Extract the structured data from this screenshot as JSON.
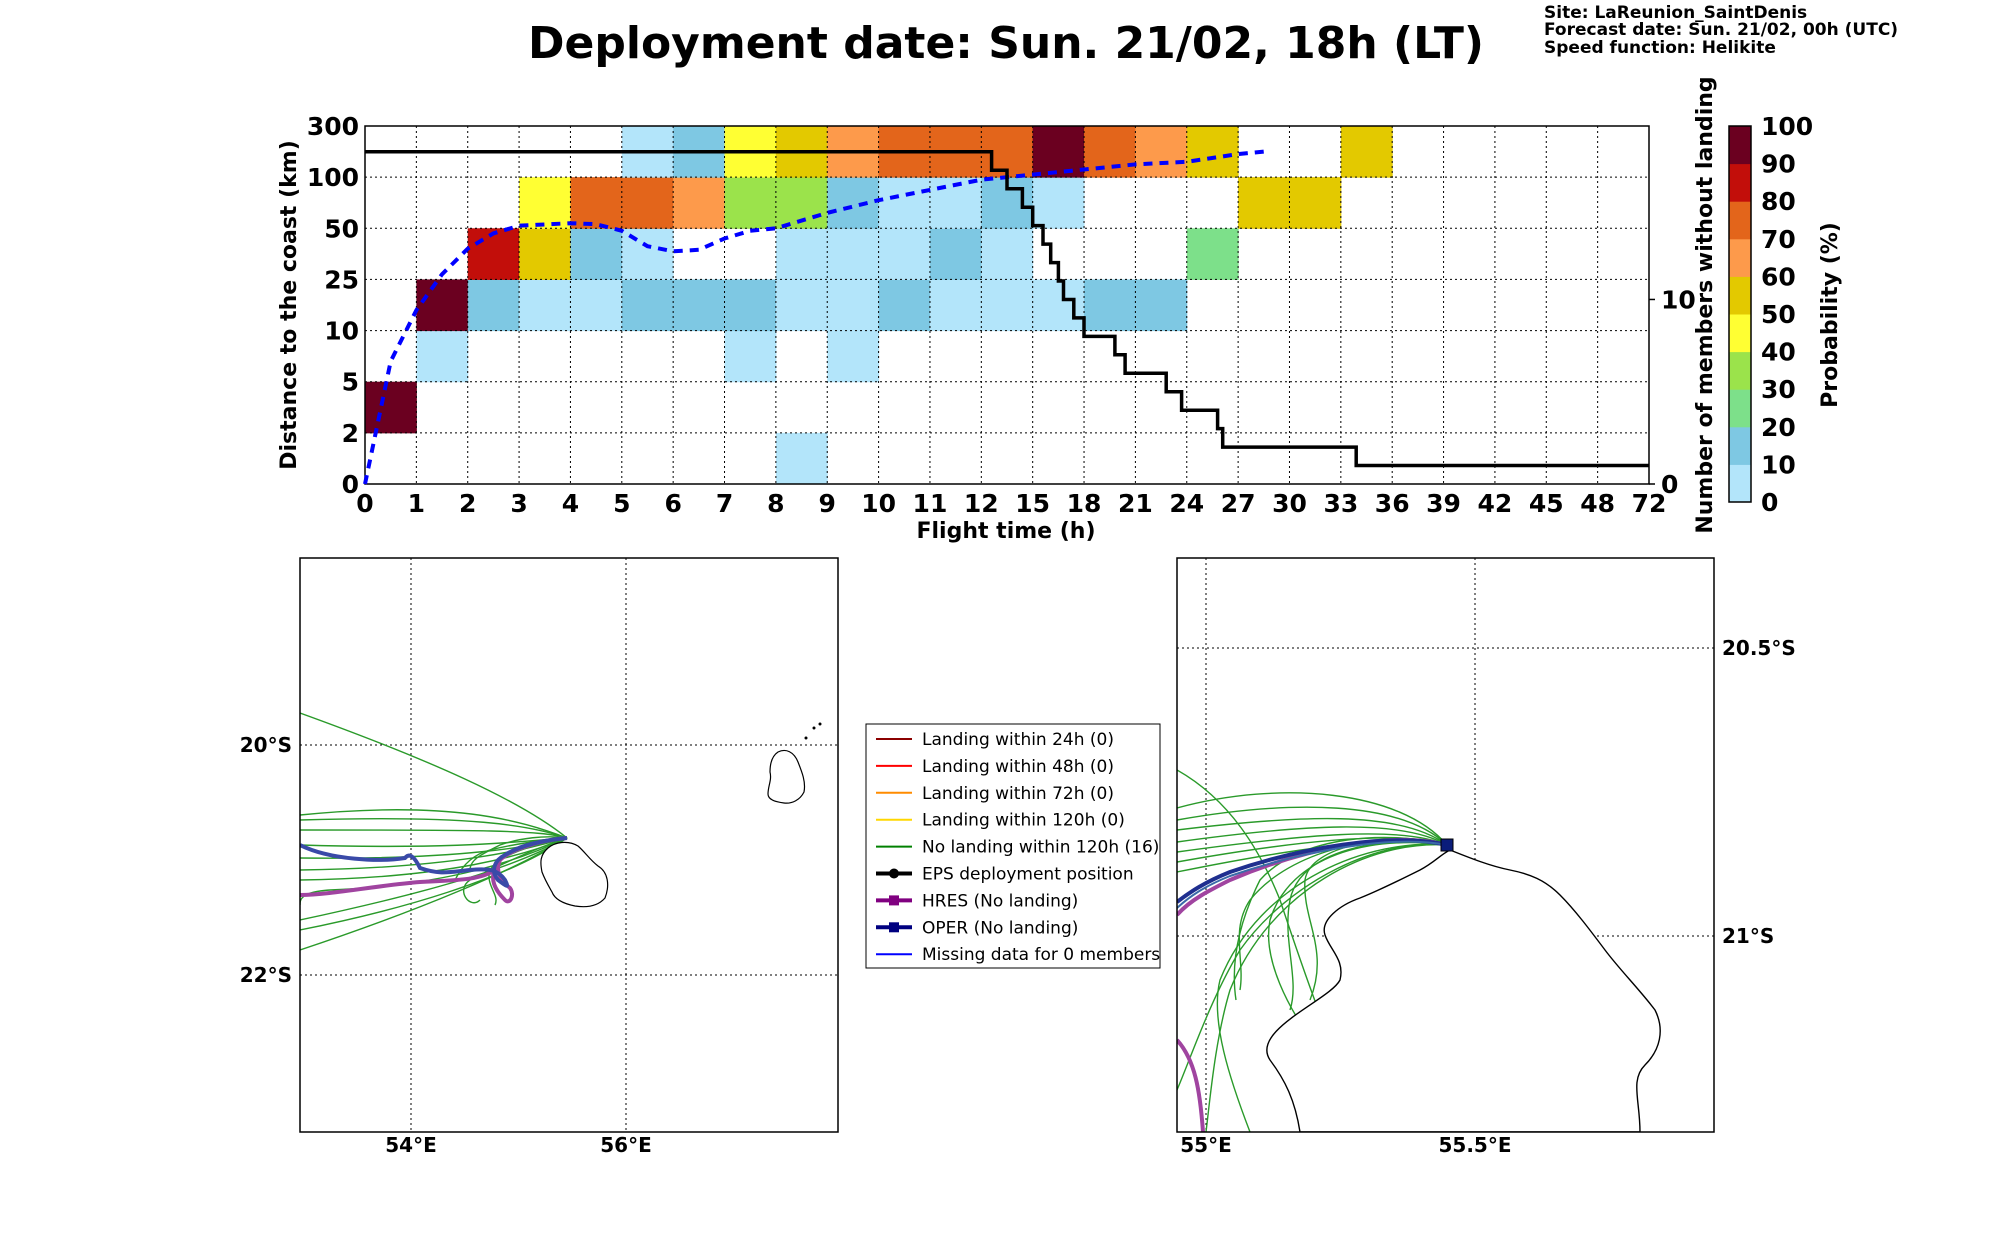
{
  "header": {
    "title": "Deployment date: Sun. 21/02, 18h (LT)",
    "site": "Site: LaReunion_SaintDenis",
    "forecast": "Forecast date: Sun. 21/02, 00h (UTC)",
    "speed": "Speed function: Helikite"
  },
  "chart_data": [
    {
      "type": "heatmap",
      "title": "Deployment date: Sun. 21/02, 18h (LT)",
      "xlabel": "Flight time (h)",
      "ylabel": "Distance to the coast (km)",
      "y2label": "Number of members without landing",
      "colorbar_label": "Probability (%)",
      "x_ticks": [
        "0",
        "1",
        "2",
        "3",
        "4",
        "5",
        "6",
        "7",
        "8",
        "9",
        "10",
        "11",
        "12",
        "15",
        "18",
        "21",
        "24",
        "27",
        "30",
        "33",
        "36",
        "39",
        "42",
        "45",
        "48",
        "72"
      ],
      "y_ticks": [
        "0",
        "2",
        "5",
        "10",
        "25",
        "50",
        "100",
        "300"
      ],
      "y2_ticks": [
        "0",
        "10"
      ],
      "y2_range": [
        0,
        19.4
      ],
      "colorbar": {
        "ticks": [
          "0",
          "10",
          "20",
          "30",
          "40",
          "50",
          "60",
          "70",
          "80",
          "90",
          "100"
        ],
        "colors": [
          "#b3e5fa",
          "#7ec8e3",
          "#7de08a",
          "#9be34b",
          "#ffff33",
          "#e3c900",
          "#fd9a4b",
          "#e3651b",
          "#c20e0a",
          "#6b0020"
        ]
      },
      "cells": [
        {
          "x_bin": 0,
          "y_bin": 1,
          "prob": 95
        },
        {
          "x_bin": 1,
          "y_bin": 2,
          "prob": 5
        },
        {
          "x_bin": 1,
          "y_bin": 3,
          "prob": 95
        },
        {
          "x_bin": 2,
          "y_bin": 3,
          "prob": 15
        },
        {
          "x_bin": 2,
          "y_bin": 4,
          "prob": 85
        },
        {
          "x_bin": 3,
          "y_bin": 3,
          "prob": 5
        },
        {
          "x_bin": 3,
          "y_bin": 4,
          "prob": 55
        },
        {
          "x_bin": 3,
          "y_bin": 5,
          "prob": 45
        },
        {
          "x_bin": 4,
          "y_bin": 3,
          "prob": 5
        },
        {
          "x_bin": 4,
          "y_bin": 4,
          "prob": 15
        },
        {
          "x_bin": 4,
          "y_bin": 5,
          "prob": 75
        },
        {
          "x_bin": 5,
          "y_bin": 3,
          "prob": 15
        },
        {
          "x_bin": 5,
          "y_bin": 4,
          "prob": 5
        },
        {
          "x_bin": 5,
          "y_bin": 5,
          "prob": 75
        },
        {
          "x_bin": 5,
          "y_bin": 6,
          "prob": 5
        },
        {
          "x_bin": 6,
          "y_bin": 3,
          "prob": 15
        },
        {
          "x_bin": 6,
          "y_bin": 5,
          "prob": 65
        },
        {
          "x_bin": 6,
          "y_bin": 6,
          "prob": 15
        },
        {
          "x_bin": 7,
          "y_bin": 2,
          "prob": 5
        },
        {
          "x_bin": 7,
          "y_bin": 3,
          "prob": 15
        },
        {
          "x_bin": 7,
          "y_bin": 5,
          "prob": 35
        },
        {
          "x_bin": 7,
          "y_bin": 6,
          "prob": 45
        },
        {
          "x_bin": 8,
          "y_bin": 0,
          "prob": 5
        },
        {
          "x_bin": 8,
          "y_bin": 3,
          "prob": 5
        },
        {
          "x_bin": 8,
          "y_bin": 4,
          "prob": 5
        },
        {
          "x_bin": 8,
          "y_bin": 5,
          "prob": 35
        },
        {
          "x_bin": 8,
          "y_bin": 6,
          "prob": 55
        },
        {
          "x_bin": 9,
          "y_bin": 2,
          "prob": 5
        },
        {
          "x_bin": 9,
          "y_bin": 3,
          "prob": 5
        },
        {
          "x_bin": 9,
          "y_bin": 4,
          "prob": 5
        },
        {
          "x_bin": 9,
          "y_bin": 5,
          "prob": 15
        },
        {
          "x_bin": 9,
          "y_bin": 6,
          "prob": 65
        },
        {
          "x_bin": 10,
          "y_bin": 3,
          "prob": 15
        },
        {
          "x_bin": 10,
          "y_bin": 4,
          "prob": 5
        },
        {
          "x_bin": 10,
          "y_bin": 5,
          "prob": 5
        },
        {
          "x_bin": 10,
          "y_bin": 6,
          "prob": 75
        },
        {
          "x_bin": 11,
          "y_bin": 3,
          "prob": 5
        },
        {
          "x_bin": 11,
          "y_bin": 4,
          "prob": 15
        },
        {
          "x_bin": 11,
          "y_bin": 5,
          "prob": 5
        },
        {
          "x_bin": 11,
          "y_bin": 6,
          "prob": 75
        },
        {
          "x_bin": 12,
          "y_bin": 3,
          "prob": 5
        },
        {
          "x_bin": 12,
          "y_bin": 4,
          "prob": 5
        },
        {
          "x_bin": 12,
          "y_bin": 5,
          "prob": 15
        },
        {
          "x_bin": 12,
          "y_bin": 6,
          "prob": 75
        },
        {
          "x_bin": 13,
          "y_bin": 3,
          "prob": 5
        },
        {
          "x_bin": 13,
          "y_bin": 5,
          "prob": 5
        },
        {
          "x_bin": 13,
          "y_bin": 6,
          "prob": 95
        },
        {
          "x_bin": 14,
          "y_bin": 3,
          "prob": 15
        },
        {
          "x_bin": 14,
          "y_bin": 6,
          "prob": 75
        },
        {
          "x_bin": 15,
          "y_bin": 3,
          "prob": 15
        },
        {
          "x_bin": 15,
          "y_bin": 6,
          "prob": 65
        },
        {
          "x_bin": 16,
          "y_bin": 4,
          "prob": 25
        },
        {
          "x_bin": 16,
          "y_bin": 6,
          "prob": 55
        },
        {
          "x_bin": 17,
          "y_bin": 5,
          "prob": 55
        },
        {
          "x_bin": 18,
          "y_bin": 5,
          "prob": 55
        },
        {
          "x_bin": 19,
          "y_bin": 6,
          "prob": 55
        }
      ],
      "series": [
        {
          "type": "line",
          "style": "dashed",
          "color": "#0000ff",
          "axis": "left",
          "points": [
            [
              0,
              0
            ],
            [
              0.5,
              2.4
            ],
            [
              1,
              3.4
            ],
            [
              1.5,
              4.1
            ],
            [
              2,
              4.6
            ],
            [
              2.5,
              4.9
            ],
            [
              3,
              5.05
            ],
            [
              4,
              5.1
            ],
            [
              4.5,
              5.08
            ],
            [
              5,
              4.95
            ],
            [
              5.5,
              4.65
            ],
            [
              6,
              4.55
            ],
            [
              6.5,
              4.58
            ],
            [
              7,
              4.8
            ],
            [
              7.5,
              4.95
            ],
            [
              8,
              5.0
            ],
            [
              9,
              5.3
            ],
            [
              10,
              5.55
            ],
            [
              11,
              5.75
            ],
            [
              12,
              5.95
            ],
            [
              13,
              6.05
            ],
            [
              14,
              6.15
            ],
            [
              15,
              6.25
            ],
            [
              16,
              6.3
            ],
            [
              17,
              6.45
            ],
            [
              17.5,
              6.5
            ]
          ]
        },
        {
          "type": "step",
          "color": "#000000",
          "axis": "right",
          "points": [
            [
              0,
              18
            ],
            [
              12.2,
              18
            ],
            [
              12.2,
              17
            ],
            [
              12.5,
              17
            ],
            [
              12.5,
              16
            ],
            [
              12.8,
              16
            ],
            [
              12.8,
              15
            ],
            [
              13,
              15
            ],
            [
              13,
              14
            ],
            [
              13.2,
              14
            ],
            [
              13.2,
              13
            ],
            [
              13.35,
              13
            ],
            [
              13.35,
              12
            ],
            [
              13.5,
              12
            ],
            [
              13.5,
              11
            ],
            [
              13.6,
              11
            ],
            [
              13.6,
              10
            ],
            [
              13.8,
              10
            ],
            [
              13.8,
              9
            ],
            [
              14,
              9
            ],
            [
              14,
              8
            ],
            [
              14.6,
              8
            ],
            [
              14.6,
              7
            ],
            [
              14.8,
              7
            ],
            [
              14.8,
              6
            ],
            [
              15.6,
              6
            ],
            [
              15.6,
              5
            ],
            [
              15.9,
              5
            ],
            [
              15.9,
              4
            ],
            [
              16.6,
              4
            ],
            [
              16.6,
              3
            ],
            [
              16.7,
              3
            ],
            [
              16.7,
              2
            ],
            [
              19.3,
              2
            ],
            [
              19.3,
              1
            ],
            [
              25,
              1
            ]
          ]
        }
      ]
    },
    {
      "type": "map",
      "panel": "left",
      "lon_ticks": [
        "54°E",
        "56°E"
      ],
      "lat_ticks": [
        "20°S",
        "22°S"
      ],
      "legend": [
        {
          "label": "Landing within 24h (0)",
          "color": "#8b0000",
          "marker": "none"
        },
        {
          "label": "Landing within 48h (0)",
          "color": "#ff0000",
          "marker": "none"
        },
        {
          "label": "Landing within 72h (0)",
          "color": "#ff8c00",
          "marker": "none"
        },
        {
          "label": "Landing within 120h (0)",
          "color": "#ffd700",
          "marker": "none"
        },
        {
          "label": "No landing within 120h (16)",
          "color": "#008000",
          "marker": "none"
        },
        {
          "label": "EPS deployment position",
          "color": "#000000",
          "marker": "circle"
        },
        {
          "label": "HRES (No landing)",
          "color": "#800080",
          "marker": "square"
        },
        {
          "label": "OPER (No landing)",
          "color": "#000080",
          "marker": "square"
        },
        {
          "label": "Missing data for 0 members",
          "color": "#0000ff",
          "marker": "none"
        }
      ]
    },
    {
      "type": "map",
      "panel": "right",
      "lon_ticks": [
        "55°E",
        "55.5°E"
      ],
      "lat_ticks": [
        "20.5°S",
        "21°S"
      ]
    }
  ]
}
